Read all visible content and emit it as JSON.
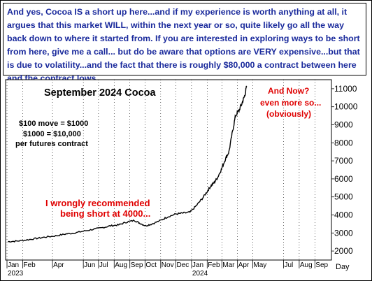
{
  "header": {
    "text": "And yes, Cocoa IS a short up here...and if my experience is worth anything at all, it argues that this market WILL, within the next year or so, quite likely go all the way back down to where it started from. If you are interested in exploring ways to be short from here, give me a call... but do be aware that options are VERY expensive...but that is due to volatility...and the fact that there is roughly $80,000 a contract between here and the contract lows."
  },
  "colors": {
    "text_blue": "#1a2a9c",
    "annotation_red": "#e00000",
    "line": "#000000"
  },
  "chart_data": {
    "type": "line",
    "title": "September 2024 Cocoa",
    "series": [
      {
        "x": [
          "2023-01-03",
          "2023-01-20",
          "2023-02-10",
          "2023-03-01",
          "2023-03-20",
          "2023-04-10",
          "2023-04-28",
          "2023-05-15",
          "2023-06-01",
          "2023-06-20",
          "2023-07-10",
          "2023-07-25",
          "2023-08-10",
          "2023-08-25",
          "2023-09-10",
          "2023-09-20",
          "2023-10-02",
          "2023-10-15",
          "2023-11-01",
          "2023-11-15",
          "2023-12-01",
          "2023-12-15",
          "2023-12-29",
          "2024-01-10",
          "2024-01-22",
          "2024-02-01",
          "2024-02-08",
          "2024-02-15",
          "2024-02-22",
          "2024-03-01",
          "2024-03-08",
          "2024-03-15",
          "2024-03-22",
          "2024-03-28",
          "2024-04-04",
          "2024-04-10",
          "2024-04-15",
          "2024-04-19"
        ],
        "y": [
          2520,
          2550,
          2620,
          2700,
          2780,
          2850,
          2950,
          3000,
          3100,
          3200,
          3300,
          3400,
          3450,
          3600,
          3700,
          3550,
          3400,
          3500,
          3700,
          3900,
          4050,
          4100,
          4150,
          4500,
          4900,
          5300,
          5600,
          5800,
          6100,
          6600,
          7100,
          7500,
          8600,
          9500,
          9800,
          10200,
          10600,
          11100
        ]
      }
    ],
    "x_ticks": [
      "Jan",
      "Feb",
      "Apr",
      "Jun",
      "Jul",
      "Aug",
      "Sep",
      "Oct",
      "Nov",
      "Dec",
      "Jan",
      "Feb",
      "Mar",
      "Apr",
      "May",
      "Jul",
      "Aug",
      "Sep"
    ],
    "x_years": [
      "2023",
      "2024"
    ],
    "x_unit": "Day",
    "y_ticks": [
      "2000",
      "3000",
      "4000",
      "5000",
      "6000",
      "7000",
      "8000",
      "9000",
      "10000",
      "11000"
    ],
    "ylim": [
      1500,
      11500
    ],
    "grid": "vertical dotted",
    "annotations": {
      "move_1": "$100 move = $1000",
      "move_2": "$1000 = $10,000",
      "move_3": "per futures contract",
      "short_1": "I wrongly recommended",
      "short_2": "being short at 4000...",
      "now_1": "And Now?",
      "now_2": "even more so...",
      "now_3": "(obviously)"
    }
  }
}
